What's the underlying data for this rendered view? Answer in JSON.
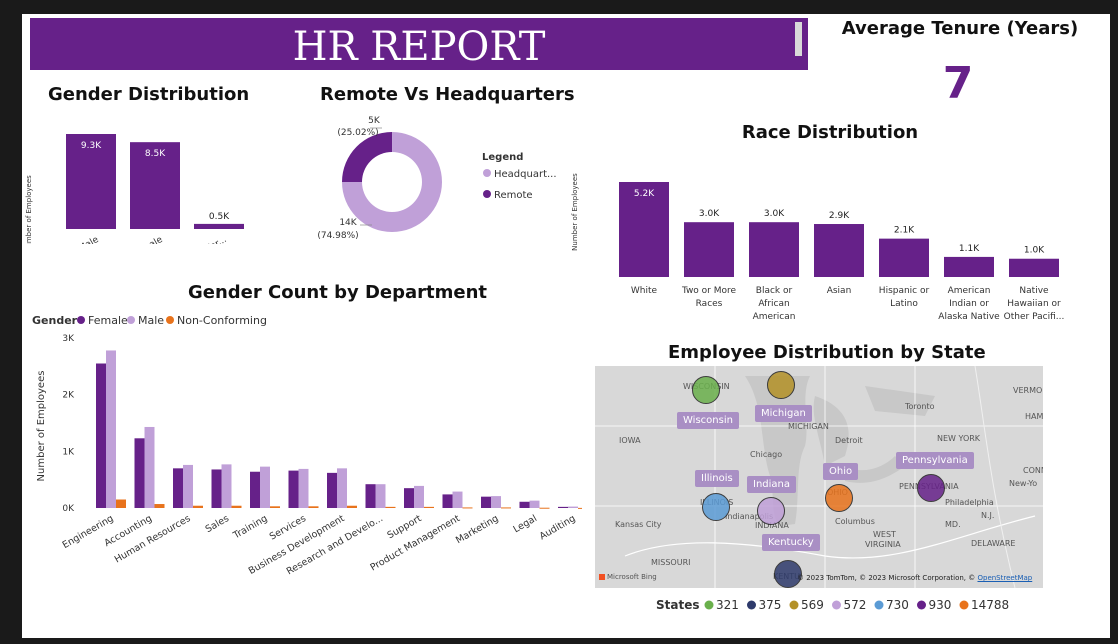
{
  "report_title": "HR REPORT",
  "kpi": {
    "label": "Average Tenure (Years)",
    "value": "7"
  },
  "colors": {
    "primary": "#662189",
    "light": "#c0a0d8",
    "orange": "#e8731c"
  },
  "gender_chart": {
    "title": "Gender Distribution",
    "ylabel": "Number of Employees",
    "categories": [
      "Male",
      "Female",
      "Non-Confor..."
    ],
    "labels": [
      "9.3K",
      "8.5K",
      "0.5K"
    ],
    "values": [
      9300,
      8500,
      500
    ]
  },
  "remote_chart": {
    "title": "Remote Vs Headquarters",
    "legend_title": "Legend",
    "legend": [
      "Headquart...",
      "Remote"
    ],
    "hq_label": "14K",
    "hq_pct": "(74.98%)",
    "remote_label": "5K",
    "remote_pct": "(25.02%)",
    "hq_share": 0.7498,
    "remote_share": 0.2502
  },
  "race_chart": {
    "title": "Race Distribution",
    "ylabel": "Number of Employees",
    "categories": [
      [
        "White"
      ],
      [
        "Two or More",
        "Races"
      ],
      [
        "Black or",
        "African",
        "American"
      ],
      [
        "Asian"
      ],
      [
        "Hispanic or",
        "Latino"
      ],
      [
        "American",
        "Indian or",
        "Alaska Native"
      ],
      [
        "Native",
        "Hawaiian or",
        "Other Pacifi..."
      ]
    ],
    "labels": [
      "5.2K",
      "3.0K",
      "3.0K",
      "2.9K",
      "2.1K",
      "1.1K",
      "1.0K"
    ],
    "values": [
      5200,
      3000,
      3000,
      2900,
      2100,
      1100,
      1000
    ]
  },
  "dept_chart": {
    "title": "Gender Count by Department",
    "legend_title": "Gender",
    "legend": [
      "Female",
      "Male",
      "Non-Conforming"
    ],
    "ylabel": "Number of Employees",
    "yticks": [
      "0K",
      "1K",
      "2K",
      "3K"
    ],
    "ymax": 3000,
    "categories": [
      "Engineering",
      "Accounting",
      "Human Resources",
      "Sales",
      "Training",
      "Services",
      "Business Development",
      "Research and Develo...",
      "Support",
      "Product Management",
      "Marketing",
      "Legal",
      "Auditing"
    ],
    "female": [
      2550,
      1230,
      700,
      680,
      640,
      660,
      620,
      420,
      350,
      240,
      200,
      110,
      20
    ],
    "male": [
      2780,
      1430,
      760,
      770,
      730,
      690,
      700,
      420,
      390,
      290,
      210,
      130,
      25
    ],
    "nonconforming": [
      150,
      70,
      40,
      40,
      30,
      30,
      40,
      20,
      20,
      10,
      10,
      5,
      2
    ]
  },
  "map": {
    "title": "Employee Distribution by State",
    "copyright": "© 2023 TomTom, © 2023 Microsoft Corporation, ©",
    "osm": "OpenStreetMap",
    "bing": "Microsoft Bing",
    "states": [
      "Wisconsin",
      "Michigan",
      "Illinois",
      "Indiana",
      "Ohio",
      "Pennsylvania",
      "Kentucky"
    ],
    "cities": [
      "WISCONSIN",
      "Toronto",
      "HAM",
      "MICHIGAN",
      "IOWA",
      "Detroit",
      "NEW YORK",
      "Chicago",
      "CONN.",
      "PENNSYLVANIA",
      "New-Yo",
      "Philadelphia",
      "ILLINOIS",
      "OHIO",
      "Indianapolis",
      "Columbus",
      "Kansas City",
      "INDIANA",
      "MD.",
      "N.J.",
      "WEST",
      "VIRGINIA",
      "DELAWARE",
      "MISSOURI",
      "KENTU",
      "VERMO"
    ],
    "legend_title": "States",
    "legend": [
      {
        "value": "321",
        "color": "#6ab04c"
      },
      {
        "value": "375",
        "color": "#2e3a6b"
      },
      {
        "value": "569",
        "color": "#b39128"
      },
      {
        "value": "572",
        "color": "#c0a0d8"
      },
      {
        "value": "730",
        "color": "#5b9bd5"
      },
      {
        "value": "930",
        "color": "#662189"
      },
      {
        "value": "14788",
        "color": "#e8731c"
      }
    ]
  }
}
